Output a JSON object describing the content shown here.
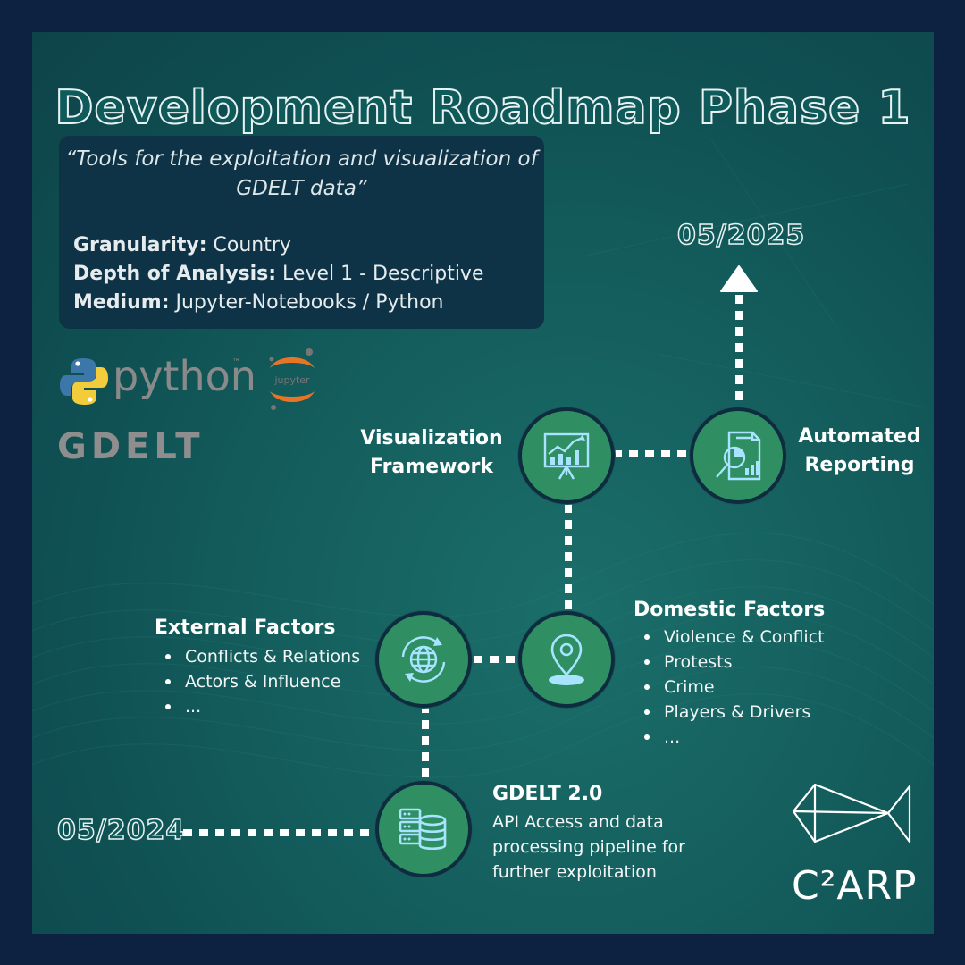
{
  "title": "Development Roadmap Phase 1",
  "info": {
    "quote_line1": "“Tools for the exploitation and visualization of",
    "quote_line2": "GDELT data”",
    "granularity_label": "Granularity:",
    "granularity_value": " Country",
    "depth_label": "Depth of Analysis:",
    "depth_value": " Level 1 - Descriptive",
    "medium_label": "Medium:",
    "medium_value": " Jupyter-Notebooks / Python"
  },
  "logos": {
    "python": "python",
    "python_tm": "™",
    "jupyter": "jupyter",
    "gdelt": "GDELT",
    "c2arp": "C²ARP"
  },
  "dates": {
    "start": "05/2024",
    "end": "05/2025"
  },
  "nodes": {
    "gdelt": {
      "icon": "database-server-icon",
      "title": "GDELT 2.0",
      "desc_line1": "API Access and data",
      "desc_line2": "processing pipeline for",
      "desc_line3": "further exploitation"
    },
    "external": {
      "icon": "globe-refresh-icon",
      "title": "External Factors",
      "items": [
        "Conflicts & Relations",
        "Actors & Influence",
        "..."
      ]
    },
    "domestic": {
      "icon": "map-pin-icon",
      "title": "Domestic Factors",
      "items": [
        "Violence & Conflict",
        "Protests",
        "Crime",
        "Players & Drivers",
        "..."
      ]
    },
    "visualization": {
      "icon": "chart-presentation-icon",
      "title_line1": "Visualization",
      "title_line2": "Framework"
    },
    "reporting": {
      "icon": "report-magnifier-icon",
      "title_line1": "Automated",
      "title_line2": "Reporting"
    }
  },
  "colors": {
    "background": "#0c2240",
    "panel": "#15605f",
    "node": "#2f8f63",
    "icon": "#a8e4ff"
  }
}
